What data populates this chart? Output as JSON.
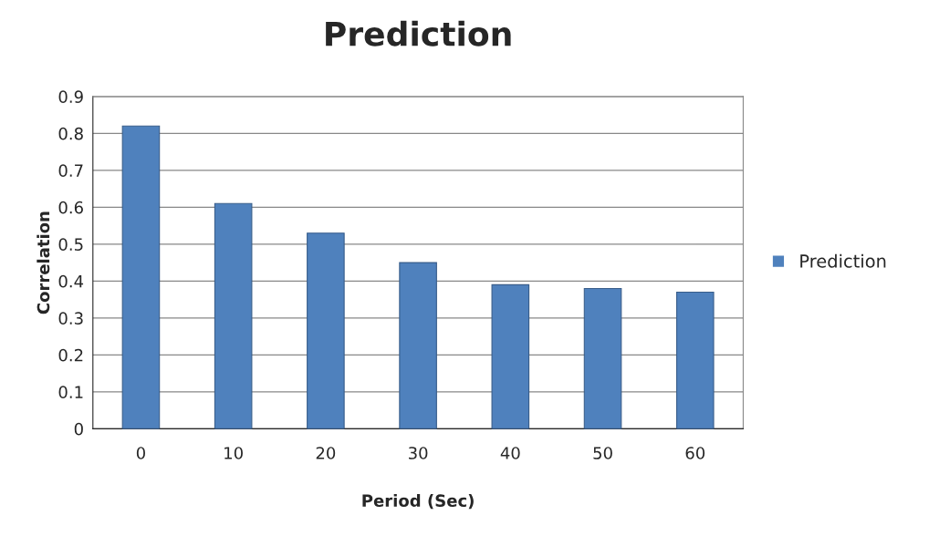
{
  "chart_data": {
    "type": "bar",
    "title": "Prediction",
    "xlabel": "Period (Sec)",
    "ylabel": "Correlation",
    "categories": [
      "0",
      "10",
      "20",
      "30",
      "40",
      "50",
      "60"
    ],
    "series": [
      {
        "name": "Prediction",
        "color": "#4f81bd",
        "values": [
          0.82,
          0.61,
          0.53,
          0.45,
          0.39,
          0.38,
          0.37
        ]
      }
    ],
    "ylim": [
      0,
      0.9
    ],
    "yticks": [
      0,
      0.1,
      0.2,
      0.3,
      0.4,
      0.5,
      0.6,
      0.7,
      0.8,
      0.9
    ],
    "grid": "y",
    "legend": "right"
  }
}
